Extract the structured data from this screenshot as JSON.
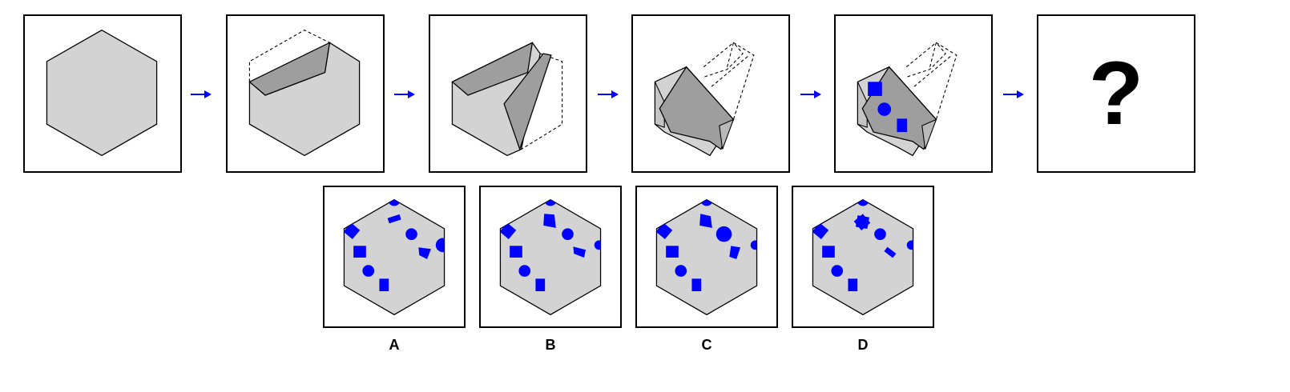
{
  "colors": {
    "fold": "#d3d3d3",
    "fold_dark": "#9e9e9e",
    "mark": "#0000ff",
    "arrow": "#0000ff",
    "outline": "#000000"
  },
  "sequence": {
    "steps": [
      "hexagon-paper",
      "fold-1",
      "fold-2",
      "fold-3",
      "punched-holes"
    ],
    "unknown_label": "?"
  },
  "options": [
    {
      "label": "A"
    },
    {
      "label": "B"
    },
    {
      "label": "C"
    },
    {
      "label": "D"
    }
  ]
}
